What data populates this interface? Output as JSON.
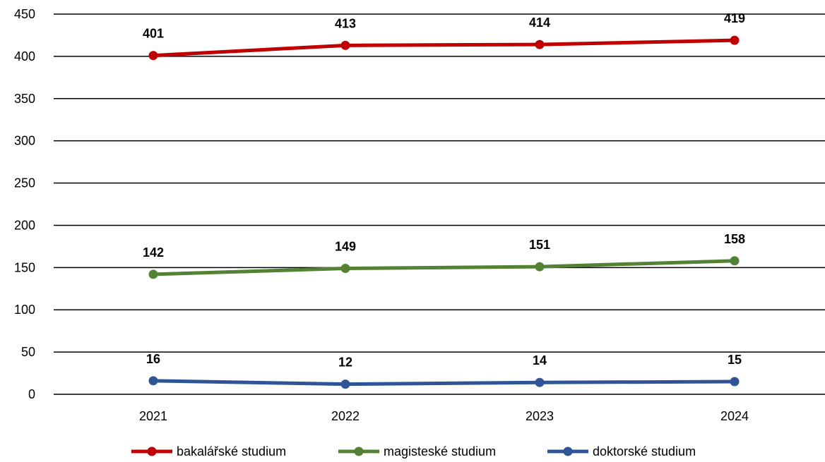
{
  "chart_data": {
    "type": "line",
    "title": "",
    "xlabel": "",
    "ylabel": "",
    "categories": [
      "2021",
      "2022",
      "2023",
      "2024"
    ],
    "ylim": [
      0,
      450
    ],
    "yticks": [
      0,
      50,
      100,
      150,
      200,
      250,
      300,
      350,
      400,
      450
    ],
    "grid": true,
    "legend_position": "bottom",
    "series": [
      {
        "name": "bakalářské studium",
        "values": [
          401,
          413,
          414,
          419
        ],
        "color": "#C00000"
      },
      {
        "name": "magisteské studium",
        "values": [
          142,
          149,
          151,
          158
        ],
        "color": "#548235"
      },
      {
        "name": "doktorské studium",
        "values": [
          16,
          12,
          14,
          15
        ],
        "color": "#2F5597"
      }
    ]
  }
}
